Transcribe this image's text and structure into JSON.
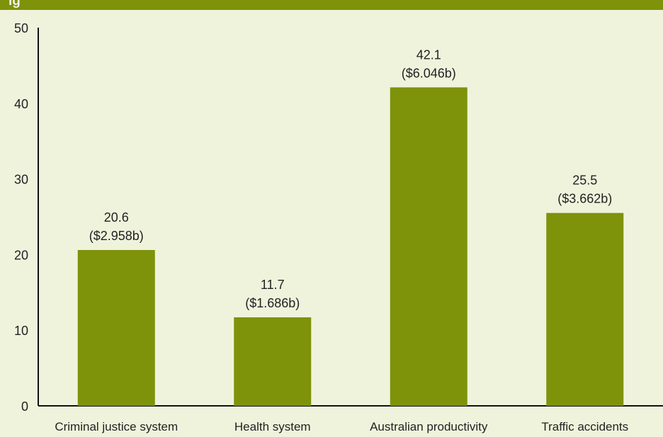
{
  "header": {
    "title": "ig"
  },
  "colors": {
    "header_bar": "#7e920a",
    "bar_fill": "#7e920a",
    "background": "#eff3dc",
    "text": "#222222"
  },
  "chart_data": {
    "type": "bar",
    "title": "",
    "xlabel": "",
    "ylabel": "",
    "ylim": [
      0,
      50
    ],
    "y_ticks": [
      0,
      10,
      20,
      30,
      40,
      50
    ],
    "grid": false,
    "categories": [
      "Criminal justice system",
      "Health system",
      "Australian productivity",
      "Traffic accidents"
    ],
    "series": [
      {
        "values": [
          20.6,
          11.7,
          42.1,
          25.5
        ],
        "labels": [
          "($2.958b)",
          "($1.686b)",
          "($6.046b)",
          "($3.662b)"
        ]
      }
    ]
  }
}
